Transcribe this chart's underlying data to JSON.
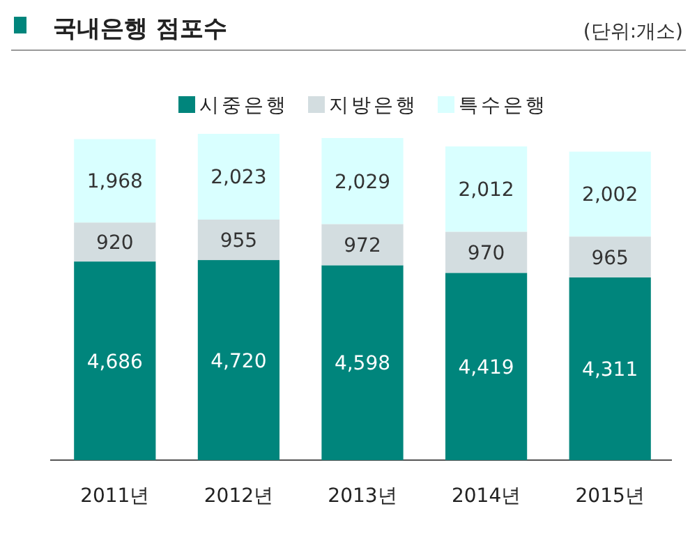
{
  "chart_data": {
    "type": "bar",
    "title": "국내은행 점포수",
    "annotations": [
      "(단위:개소)"
    ],
    "stacked": true,
    "legend": "top",
    "categories": [
      "2011년",
      "2012년",
      "2013년",
      "2014년",
      "2015년"
    ],
    "series": [
      {
        "name": "시중은행",
        "color": "#00857c",
        "values": [
          4686,
          4720,
          4598,
          4419,
          4311
        ],
        "value_labels": [
          "4,686",
          "4,720",
          "4,598",
          "4,419",
          "4,311"
        ]
      },
      {
        "name": "지방은행",
        "color": "#d3dde0",
        "values": [
          920,
          955,
          972,
          970,
          965
        ],
        "value_labels": [
          "920",
          "955",
          "972",
          "970",
          "965"
        ]
      },
      {
        "name": "특수은행",
        "color": "#d9ffff",
        "values": [
          1968,
          2023,
          2029,
          2012,
          2002
        ],
        "value_labels": [
          "1,968",
          "2,023",
          "2,029",
          "2,012",
          "2,002"
        ]
      }
    ]
  }
}
